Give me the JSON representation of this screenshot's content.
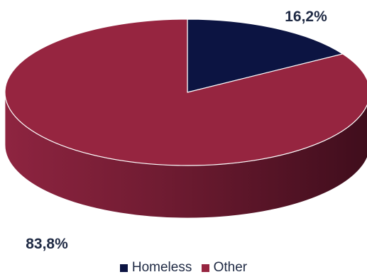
{
  "chart_data": {
    "type": "pie",
    "title": "",
    "slices": [
      {
        "name": "Homeless",
        "value": 16.2,
        "label": "16,2%",
        "color": "#0c1442",
        "side_color": "#070b26"
      },
      {
        "name": "Other",
        "value": 83.8,
        "label": "83,8%",
        "color": "#962540",
        "side_color": "#6a1a2e"
      }
    ],
    "legend_placement": "bottom",
    "three_d": true
  }
}
